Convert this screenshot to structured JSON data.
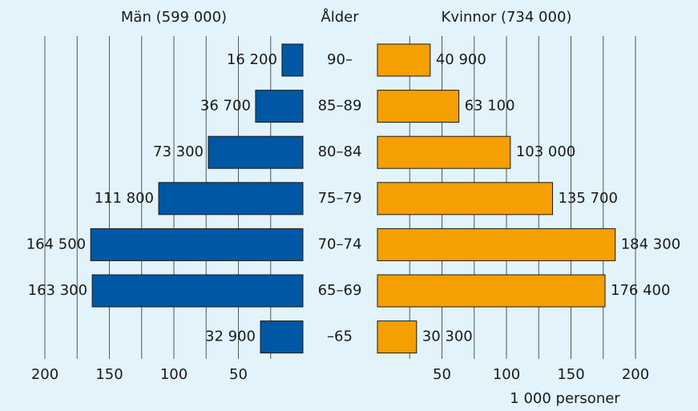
{
  "chart_data": {
    "type": "pyramid",
    "category_label": "Ålder",
    "xlabel": "1 000 personer",
    "categories": [
      "90–",
      "85–89",
      "80–84",
      "75–79",
      "70–74",
      "65–69",
      "–65"
    ],
    "series": [
      {
        "name": "Män (599 000)",
        "color": "#0057a3",
        "values": [
          16.2,
          36.7,
          73.3,
          111.8,
          164.5,
          163.3,
          32.9
        ],
        "value_labels": [
          "16 200",
          "36 700",
          "73 300",
          "111 800",
          "164 500",
          "163 300",
          "32 900"
        ]
      },
      {
        "name": "Kvinnor (734 000)",
        "color": "#f59f00",
        "values": [
          40.9,
          63.1,
          103.0,
          135.7,
          184.3,
          176.4,
          30.3
        ],
        "value_labels": [
          "40 900",
          "63 100",
          "103 000",
          "135 700",
          "184 300",
          "176 400",
          "30 300"
        ]
      }
    ],
    "xlim": [
      0,
      200
    ],
    "xticks": [
      50,
      100,
      150,
      200
    ],
    "xminorticks": [
      25,
      75,
      125,
      175
    ],
    "grid": true
  }
}
